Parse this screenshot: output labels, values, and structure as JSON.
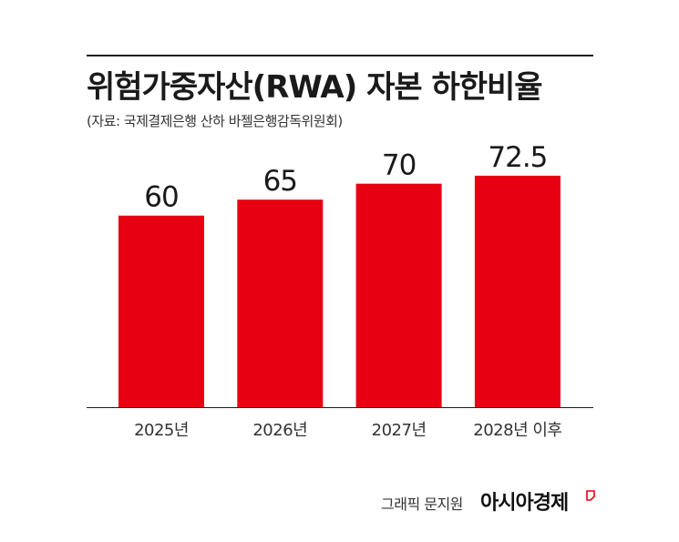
{
  "chart_data": {
    "type": "bar",
    "title": "위험가중자산(RWA) 자본 하한비율",
    "subtitle": "(자료: 국제결제은행 산하 바젤은행감독위원회)",
    "categories": [
      "2025년",
      "2026년",
      "2027년",
      "2028년 이후"
    ],
    "values": [
      60,
      65,
      70,
      72.5
    ],
    "data_labels": [
      "60",
      "65",
      "70",
      "72.5"
    ],
    "bar_color": "#e60012",
    "xlabel": "",
    "ylabel": "",
    "ylim": [
      0,
      80
    ],
    "grid": false,
    "legend": "none"
  },
  "footer": {
    "credit": "그래픽 문지원",
    "brand": "아시아경제"
  },
  "colors": {
    "accent": "#e60012",
    "text": "#1a1a1a"
  }
}
